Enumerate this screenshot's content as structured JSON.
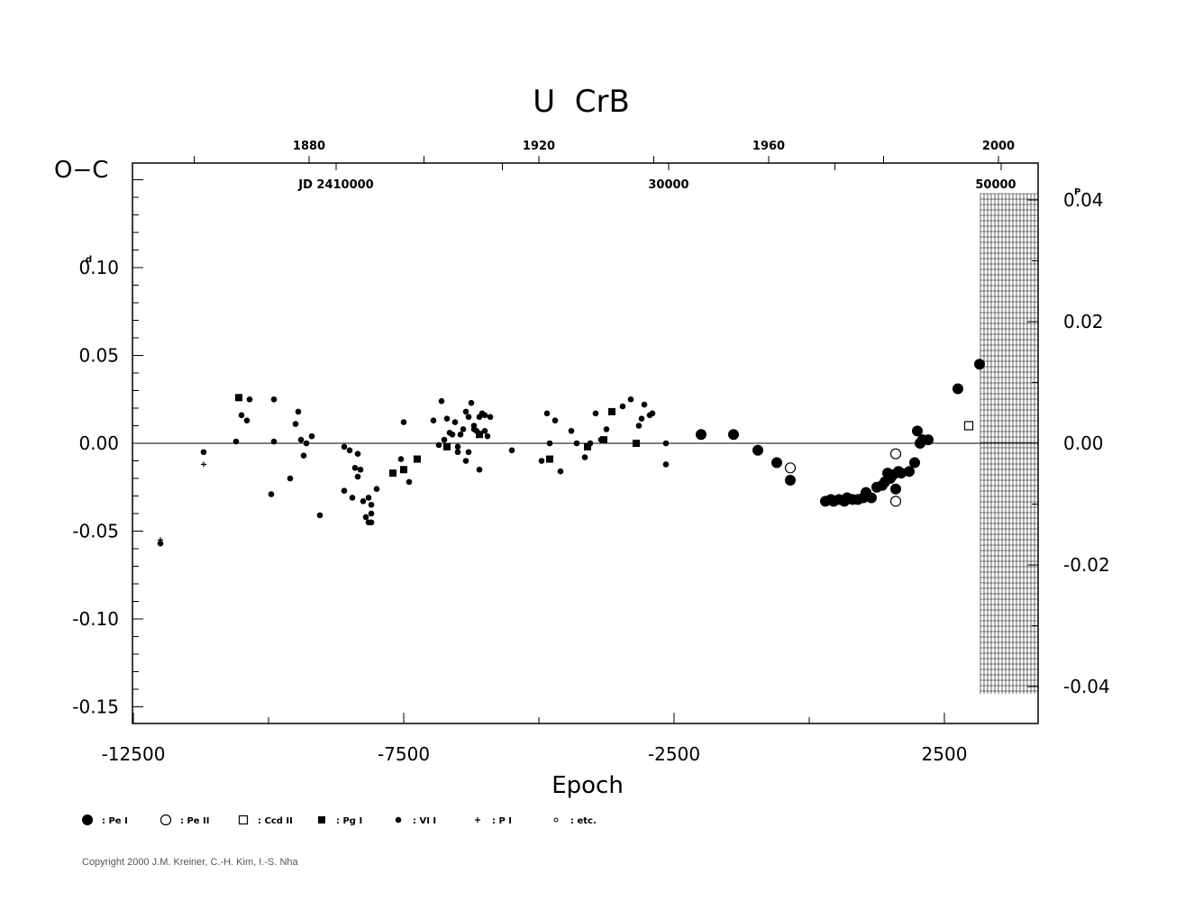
{
  "chart_data": {
    "type": "scatter",
    "title": "U  CrB",
    "ylabel": "O−C",
    "xlabel": "Epoch",
    "xlim": [
      -12500,
      5500
    ],
    "ylim": [
      -0.16,
      0.16
    ],
    "x_ticks": [
      "-12500",
      "-7500",
      "-2500",
      "2500"
    ],
    "y_ticks": [
      "-0.15",
      "-0.10",
      "-0.05",
      "0.00",
      "0.05",
      "0.10"
    ],
    "y_unit_mark": "d",
    "right_axis": {
      "ticks": [
        "-0.04",
        "-0.02",
        "0.00",
        "0.02",
        "0.04"
      ],
      "unit_mark": "P"
    },
    "top_axis_years": [
      {
        "label": "1880",
        "epoch": -9250
      },
      {
        "label": "1920",
        "epoch": -5000
      },
      {
        "label": "1960",
        "epoch": -750
      },
      {
        "label": "2000",
        "epoch": 3500
      }
    ],
    "top_axis_jd": [
      {
        "label": "JD  2410000",
        "epoch": -8750
      },
      {
        "label": "30000",
        "epoch": -2600
      },
      {
        "label": "50000",
        "epoch": 3450
      }
    ],
    "series": [
      {
        "name": ": Pe I",
        "symbol": "big-filled",
        "points": [
          [
            -2000,
            0.005
          ],
          [
            -1400,
            0.005
          ],
          [
            -950,
            -0.004
          ],
          [
            -600,
            -0.011
          ],
          [
            -350,
            -0.021
          ],
          [
            300,
            -0.033
          ],
          [
            400,
            -0.032
          ],
          [
            450,
            -0.033
          ],
          [
            550,
            -0.032
          ],
          [
            650,
            -0.033
          ],
          [
            700,
            -0.031
          ],
          [
            800,
            -0.032
          ],
          [
            900,
            -0.032
          ],
          [
            1000,
            -0.031
          ],
          [
            1050,
            -0.028
          ],
          [
            1150,
            -0.031
          ],
          [
            1250,
            -0.025
          ],
          [
            1350,
            -0.024
          ],
          [
            1400,
            -0.022
          ],
          [
            1450,
            -0.017
          ],
          [
            1500,
            -0.02
          ],
          [
            1550,
            -0.018
          ],
          [
            1600,
            -0.026
          ],
          [
            1650,
            -0.016
          ],
          [
            1700,
            -0.017
          ],
          [
            1850,
            -0.016
          ],
          [
            1950,
            -0.011
          ],
          [
            2000,
            0.007
          ],
          [
            2050,
            0.0
          ],
          [
            2100,
            0.002
          ],
          [
            2200,
            0.002
          ],
          [
            2750,
            0.031
          ],
          [
            3150,
            0.045
          ]
        ]
      },
      {
        "name": ": Pe II",
        "symbol": "big-open",
        "points": [
          [
            -350,
            -0.014
          ],
          [
            1600,
            -0.006
          ],
          [
            1600,
            -0.033
          ]
        ]
      },
      {
        "name": ": Ccd II",
        "symbol": "open-square",
        "points": [
          [
            2950,
            0.01
          ]
        ]
      },
      {
        "name": ": Pg I",
        "symbol": "filled-square",
        "points": [
          [
            -10550,
            0.026
          ],
          [
            -7700,
            -0.017
          ],
          [
            -7500,
            -0.015
          ],
          [
            -7250,
            -0.009
          ],
          [
            -6700,
            -0.002
          ],
          [
            -6100,
            0.005
          ],
          [
            -4800,
            -0.009
          ],
          [
            -4100,
            -0.002
          ],
          [
            -3800,
            0.002
          ],
          [
            -3650,
            0.018
          ],
          [
            -3200,
            0.0
          ]
        ]
      },
      {
        "name": ": VI I",
        "symbol": "small-filled",
        "points": [
          [
            -12000,
            -0.057
          ],
          [
            -11200,
            -0.005
          ],
          [
            -10600,
            0.001
          ],
          [
            -10500,
            0.016
          ],
          [
            -10400,
            0.013
          ],
          [
            -10350,
            0.025
          ],
          [
            -9950,
            -0.029
          ],
          [
            -9900,
            0.025
          ],
          [
            -9900,
            0.001
          ],
          [
            -9600,
            -0.02
          ],
          [
            -9500,
            0.011
          ],
          [
            -9450,
            0.018
          ],
          [
            -9400,
            0.002
          ],
          [
            -9350,
            -0.007
          ],
          [
            -9300,
            0.0
          ],
          [
            -9200,
            0.004
          ],
          [
            -9050,
            -0.041
          ],
          [
            -8600,
            -0.002
          ],
          [
            -8600,
            -0.027
          ],
          [
            -8500,
            -0.004
          ],
          [
            -8450,
            -0.031
          ],
          [
            -8400,
            -0.014
          ],
          [
            -8350,
            -0.019
          ],
          [
            -8350,
            -0.006
          ],
          [
            -8300,
            -0.015
          ],
          [
            -8250,
            -0.033
          ],
          [
            -8200,
            -0.042
          ],
          [
            -8150,
            -0.031
          ],
          [
            -8150,
            -0.045
          ],
          [
            -8100,
            -0.035
          ],
          [
            -8100,
            -0.04
          ],
          [
            -8100,
            -0.045
          ],
          [
            -8000,
            -0.026
          ],
          [
            -7550,
            -0.009
          ],
          [
            -7500,
            0.012
          ],
          [
            -7400,
            -0.022
          ],
          [
            -6800,
            0.024
          ],
          [
            -6700,
            0.014
          ],
          [
            -6650,
            0.006
          ],
          [
            -6600,
            0.005
          ],
          [
            -6550,
            0.012
          ],
          [
            -6500,
            -0.002
          ],
          [
            -6450,
            0.005
          ],
          [
            -6400,
            0.008
          ],
          [
            -6350,
            0.018
          ],
          [
            -6300,
            0.015
          ],
          [
            -6300,
            -0.005
          ],
          [
            -6250,
            0.023
          ],
          [
            -6200,
            0.01
          ],
          [
            -6150,
            0.007
          ],
          [
            -6100,
            0.015
          ],
          [
            -6050,
            0.017
          ],
          [
            -6000,
            0.016
          ],
          [
            -6000,
            0.007
          ],
          [
            -5950,
            0.004
          ],
          [
            -5900,
            0.015
          ],
          [
            -5500,
            -0.004
          ],
          [
            -4950,
            -0.01
          ],
          [
            -4850,
            0.017
          ],
          [
            -4800,
            0.0
          ],
          [
            -4700,
            0.013
          ],
          [
            -4600,
            -0.016
          ],
          [
            -4400,
            0.007
          ],
          [
            -4300,
            0.0
          ],
          [
            -4150,
            -0.008
          ],
          [
            -4050,
            0.0
          ],
          [
            -3950,
            0.017
          ],
          [
            -3850,
            0.002
          ],
          [
            -3750,
            0.008
          ],
          [
            -3450,
            0.021
          ],
          [
            -3300,
            0.025
          ],
          [
            -3150,
            0.01
          ],
          [
            -3100,
            0.014
          ],
          [
            -3050,
            0.022
          ],
          [
            -2950,
            0.016
          ],
          [
            -2900,
            0.017
          ],
          [
            -2650,
            0.0
          ],
          [
            -2650,
            -0.012
          ],
          [
            -6950,
            0.013
          ],
          [
            -6850,
            -0.001
          ],
          [
            -6750,
            0.002
          ],
          [
            -6500,
            -0.005
          ],
          [
            -6350,
            -0.01
          ],
          [
            -6200,
            0.008
          ],
          [
            -6100,
            -0.015
          ]
        ]
      },
      {
        "name": ": P I",
        "symbol": "plus",
        "points": [
          [
            -12000,
            -0.055
          ],
          [
            -11200,
            -0.012
          ]
        ]
      },
      {
        "name": ": etc.",
        "symbol": "dot",
        "points": []
      }
    ],
    "legend": "bottom",
    "grid": false
  },
  "copyright": "Copyright 2000 J.M. Kreiner, C.-H. Kim, I.-S. Nha"
}
